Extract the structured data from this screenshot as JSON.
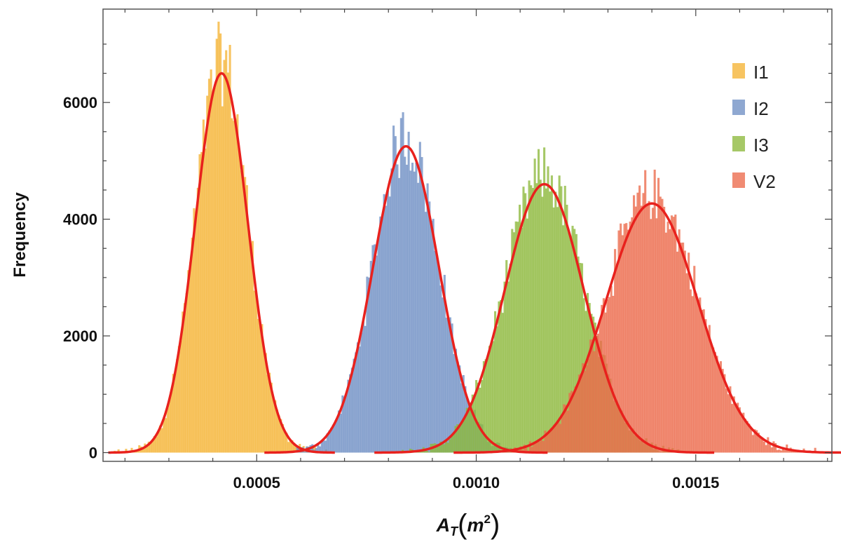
{
  "chart_data": {
    "type": "bar",
    "subtype": "histogram-with-normal-fits",
    "title": "",
    "xlabel": {
      "base": "A",
      "subscript": "T",
      "unit_base": "m",
      "unit_exp": "2"
    },
    "ylabel": "Frequency",
    "xlim": [
      0.00015,
      0.00181
    ],
    "ylim": [
      -150,
      7600
    ],
    "x_ticks": [
      0.0005,
      0.001,
      0.0015
    ],
    "x_tick_labels": [
      "0.0005",
      "0.0010",
      "0.0015"
    ],
    "y_ticks": [
      0,
      2000,
      4000,
      6000
    ],
    "y_tick_labels": [
      "0",
      "2000",
      "4000",
      "6000"
    ],
    "bin_width": 4.3e-06,
    "grid": false,
    "legend_position": "top-right",
    "fit_color": "#e8211d",
    "series": [
      {
        "name": "I1",
        "color": "#f5b335",
        "mean": 0.00042,
        "std": 6e-05,
        "peak": 6500,
        "hist_peak": 7200,
        "range": [
          0.00017,
          0.00066
        ]
      },
      {
        "name": "I2",
        "color": "#6f8fc4",
        "mean": 0.00084,
        "std": 7.5e-05,
        "peak": 5250,
        "hist_peak": 5700,
        "range": [
          0.00059,
          0.00108
        ]
      },
      {
        "name": "I3",
        "color": "#8db83c",
        "mean": 0.001155,
        "std": 9e-05,
        "peak": 4600,
        "hist_peak": 5050,
        "range": [
          0.00083,
          0.00146
        ]
      },
      {
        "name": "V2",
        "color": "#ec6a4b",
        "mean": 0.0014,
        "std": 0.000105,
        "peak": 4270,
        "hist_peak": 4750,
        "range": [
          0.00106,
          0.00177
        ]
      }
    ]
  }
}
